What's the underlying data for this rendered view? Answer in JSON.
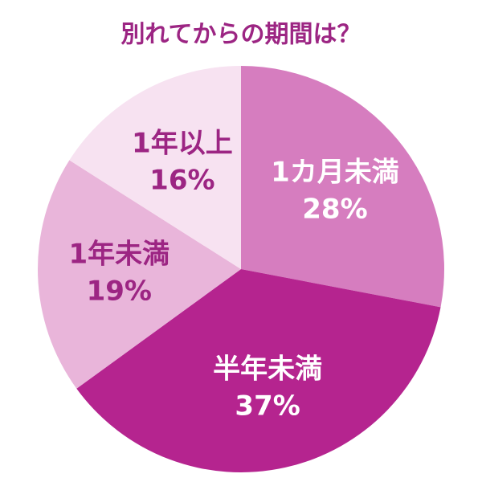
{
  "chart_data": {
    "type": "pie",
    "title": "別れてからの期間は？",
    "categories": [
      "1カ月未満",
      "半年未満",
      "1年未満",
      "1年以上"
    ],
    "values": [
      28,
      37,
      19,
      16
    ],
    "value_labels": [
      "28%",
      "37%",
      "19%",
      "16%"
    ],
    "colors": [
      "#d67dbf",
      "#b5248f",
      "#e9b5da",
      "#f7e2f1"
    ]
  }
}
